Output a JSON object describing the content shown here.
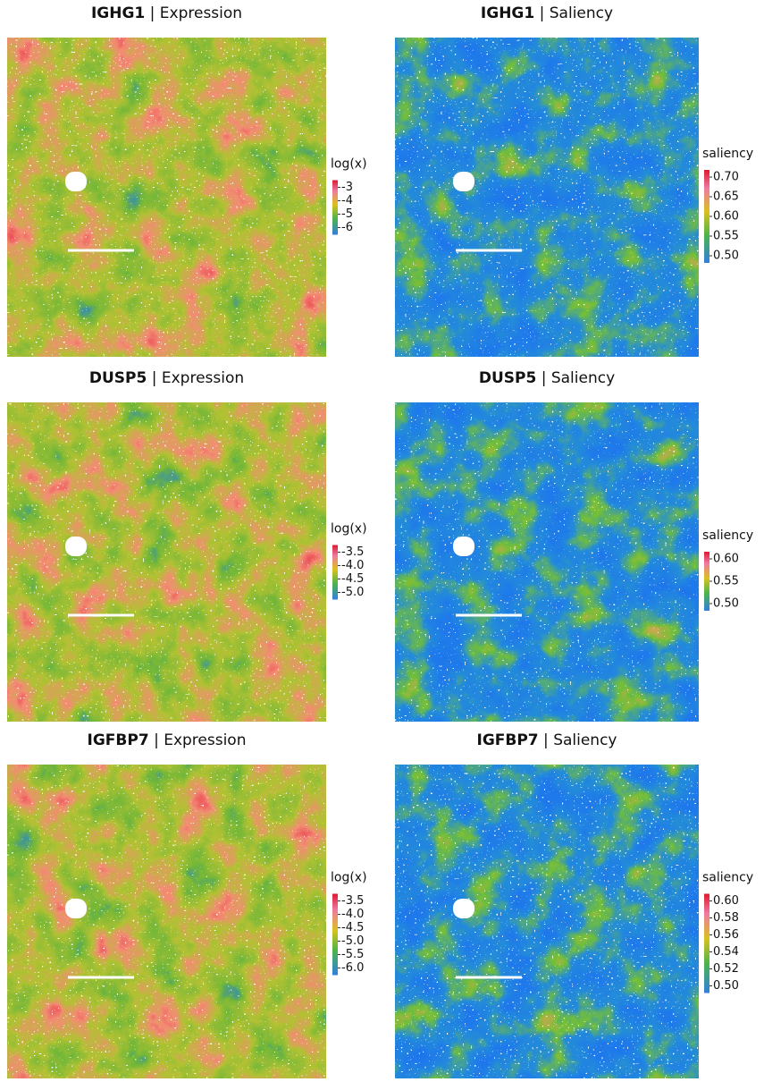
{
  "panels": [
    {
      "gene": "IGHG1",
      "separator": "|",
      "view": "Expression",
      "legend": {
        "title": "log(x)",
        "ticks": [
          "-3",
          "-4",
          "-5",
          "-6"
        ]
      }
    },
    {
      "gene": "IGHG1",
      "separator": "|",
      "view": "Saliency",
      "legend": {
        "title": "saliency",
        "ticks": [
          "0.70",
          "0.65",
          "0.60",
          "0.55",
          "0.50"
        ]
      }
    },
    {
      "gene": "DUSP5",
      "separator": "|",
      "view": "Expression",
      "legend": {
        "title": "log(x)",
        "ticks": [
          "-3.5",
          "-4.0",
          "-4.5",
          "-5.0"
        ]
      }
    },
    {
      "gene": "DUSP5",
      "separator": "|",
      "view": "Saliency",
      "legend": {
        "title": "saliency",
        "ticks": [
          "0.60",
          "0.55",
          "0.50"
        ]
      }
    },
    {
      "gene": "IGFBP7",
      "separator": "|",
      "view": "Expression",
      "legend": {
        "title": "log(x)",
        "ticks": [
          "-3.5",
          "-4.0",
          "-4.5",
          "-5.0",
          "-5.5",
          "-6.0"
        ]
      }
    },
    {
      "gene": "IGFBP7",
      "separator": "|",
      "view": "Saliency",
      "legend": {
        "title": "saliency",
        "ticks": [
          "0.60",
          "0.58",
          "0.56",
          "0.54",
          "0.52",
          "0.50"
        ]
      }
    }
  ]
}
